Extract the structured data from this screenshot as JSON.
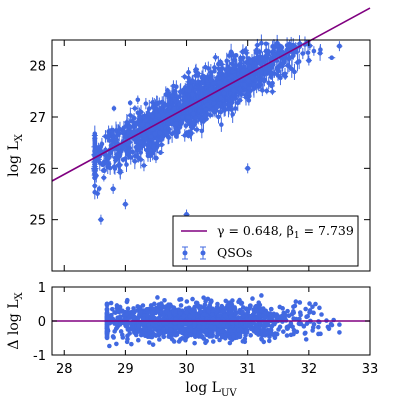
{
  "chart_data": [
    {
      "type": "scatter",
      "panel": "main",
      "xlabel": "log L_UV",
      "ylabel": "log L_X",
      "xlim": [
        27.8,
        33.0
      ],
      "ylim": [
        24.0,
        28.5
      ],
      "xticks": [
        28,
        29,
        30,
        31,
        32,
        33
      ],
      "yticks": [
        25,
        26,
        27,
        28
      ],
      "xticklabels_shown": false,
      "grid": false,
      "legend_position": "lower-right",
      "series": [
        {
          "name": "QSOs",
          "kind": "scatter-with-errorbars",
          "color": "#4169e1",
          "n_points_approx": 1800,
          "x_range": [
            28.5,
            32.5
          ],
          "relation": "y = 0.648 * x + 7.739 with ~0.24 dex scatter",
          "sample_points": [
            {
              "x": 28.6,
              "y": 25.0
            },
            {
              "x": 28.8,
              "y": 25.6
            },
            {
              "x": 29.0,
              "y": 25.3
            },
            {
              "x": 29.5,
              "y": 26.2
            },
            {
              "x": 30.0,
              "y": 25.1
            },
            {
              "x": 30.5,
              "y": 27.2
            },
            {
              "x": 31.0,
              "y": 26.0
            },
            {
              "x": 31.5,
              "y": 27.9
            },
            {
              "x": 32.0,
              "y": 28.1
            },
            {
              "x": 32.5,
              "y": 28.38
            }
          ]
        },
        {
          "name": "γ = 0.648, β1 = 7.739",
          "kind": "line",
          "color": "#800080",
          "slope": 0.648,
          "intercept": 7.739
        }
      ],
      "legend": {
        "line_label": {
          "before": "γ = 0.648, β",
          "sub": "1",
          "after": " = 7.739"
        },
        "points_label": "QSOs"
      }
    },
    {
      "type": "scatter",
      "panel": "residual",
      "xlabel": "log L_UV",
      "ylabel": "Δ log L_X",
      "xlim": [
        27.8,
        33.0
      ],
      "ylim": [
        -1,
        1
      ],
      "xticks": [
        28,
        29,
        30,
        31,
        32,
        33
      ],
      "yticks": [
        -1,
        0,
        1
      ],
      "grid": false,
      "series": [
        {
          "name": "residuals",
          "kind": "scatter",
          "color": "#4169e1",
          "x_range": [
            28.7,
            32.5
          ],
          "scatter_sigma": 0.25
        },
        {
          "name": "zero line",
          "kind": "line",
          "color": "#800080",
          "y": 0
        }
      ]
    }
  ],
  "labels": {
    "main_ylabel": {
      "base": "log L",
      "sub": "X"
    },
    "resid_ylabel": {
      "base": "Δ log L",
      "sub": "X"
    },
    "xlabel": {
      "base": "log L",
      "sub": "UV"
    }
  }
}
